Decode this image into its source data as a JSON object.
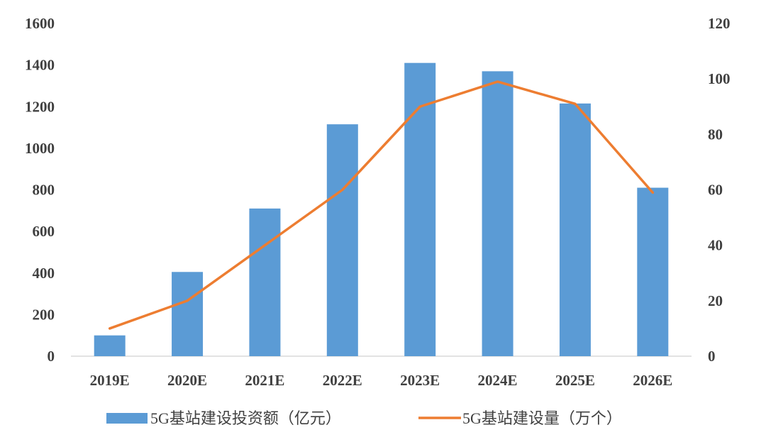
{
  "chart_data": {
    "type": "bar",
    "categories": [
      "2019E",
      "2020E",
      "2021E",
      "2022E",
      "2023E",
      "2024E",
      "2025E",
      "2026E"
    ],
    "series": [
      {
        "name": "5G基站建设投资额（亿元）",
        "type": "bar",
        "axis": "left",
        "color": "#5B9BD5",
        "values": [
          100,
          405,
          710,
          1115,
          1410,
          1370,
          1215,
          810
        ]
      },
      {
        "name": "5G基站建设量（万个）",
        "type": "line",
        "axis": "right",
        "color": "#ED7D31",
        "values": [
          10,
          20,
          40,
          60,
          90,
          99,
          91,
          59
        ]
      }
    ],
    "left_axis": {
      "min": 0,
      "max": 1600,
      "ticks": [
        "0",
        "200",
        "400",
        "600",
        "800",
        "1000",
        "1200",
        "1400",
        "1600"
      ]
    },
    "right_axis": {
      "min": 0,
      "max": 120,
      "ticks": [
        "0",
        "20",
        "40",
        "60",
        "80",
        "100",
        "120"
      ]
    },
    "grid": false,
    "legend_position": "bottom"
  }
}
